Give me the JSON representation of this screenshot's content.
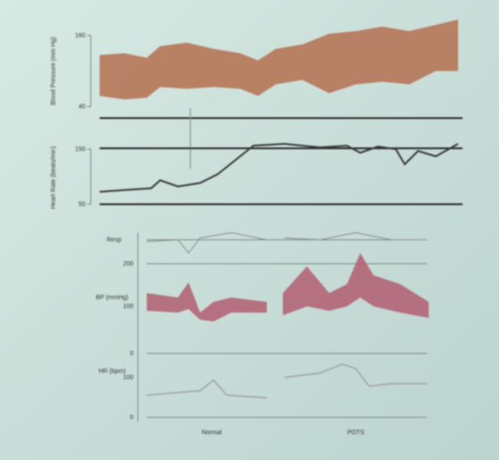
{
  "top_panel": {
    "y_label": "Blood Pressure (mm Hg)",
    "y_max": "160",
    "y_min": "40"
  },
  "middle_panel": {
    "y_label": "Heart Rate (beats/min)",
    "y_max": "150",
    "y_min": "50"
  },
  "bottom_panel": {
    "resp_label": "Resp",
    "bp_label": "BP (mmHg)",
    "bp_ticks": [
      "200",
      "100",
      "0"
    ],
    "hr_label": "HR (bpm)",
    "hr_ticks": [
      "100",
      "0"
    ],
    "conditions": [
      "Normal",
      "POTS"
    ]
  }
}
